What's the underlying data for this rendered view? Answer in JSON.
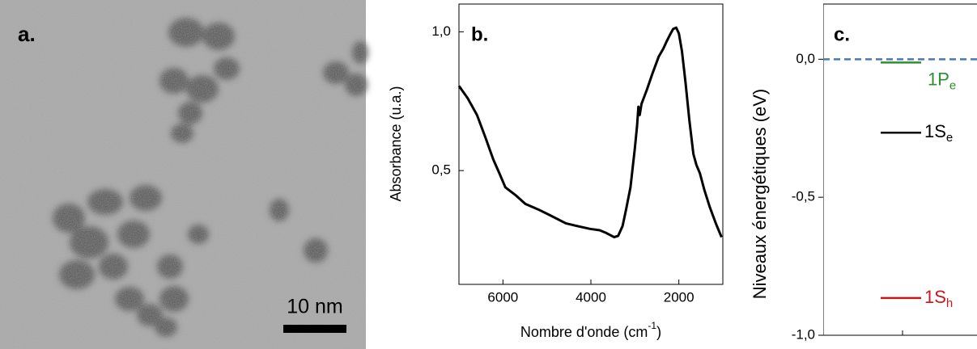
{
  "panel_a": {
    "label": "a.",
    "scale_bar": "10 nm"
  },
  "chart_data": [
    {
      "type": "line",
      "label": "b.",
      "y_label": "Absorbance (u.a.)",
      "x_label": "Nombre d'onde (cm",
      "x_label_sup": "-1",
      "x_label_end": ")",
      "x": [
        7000,
        6800,
        6590,
        6400,
        6220,
        6080,
        5945,
        5700,
        5490,
        5200,
        4940,
        4570,
        4300,
        4020,
        3800,
        3650,
        3470,
        3380,
        3280,
        3200,
        3100,
        3000,
        2950,
        2920,
        2890,
        2850,
        2730,
        2600,
        2460,
        2350,
        2280,
        2200,
        2130,
        2060,
        2000,
        1930,
        1850,
        1760,
        1670,
        1600,
        1520,
        1420,
        1300,
        1160,
        1030
      ],
      "series": [
        {
          "color": "#000000",
          "values": [
            0.805,
            0.76,
            0.7,
            0.62,
            0.54,
            0.49,
            0.44,
            0.41,
            0.38,
            0.36,
            0.34,
            0.31,
            0.3,
            0.29,
            0.285,
            0.275,
            0.26,
            0.265,
            0.3,
            0.36,
            0.44,
            0.58,
            0.66,
            0.73,
            0.7,
            0.74,
            0.79,
            0.85,
            0.91,
            0.94,
            0.965,
            0.99,
            1.01,
            1.015,
            0.994,
            0.93,
            0.82,
            0.68,
            0.56,
            0.52,
            0.49,
            0.43,
            0.37,
            0.31,
            0.26
          ]
        }
      ],
      "xlim": [
        7000,
        1000
      ],
      "xticks": [
        6000,
        4000,
        2000
      ],
      "ylim": [
        0.09,
        1.1
      ],
      "yticks": [
        {
          "value": 1,
          "label": "1,0"
        },
        {
          "value": 0.5,
          "label": "0,5"
        }
      ]
    },
    {
      "type": "levels",
      "label": "c.",
      "y_label": "Niveaux énergétiques (eV)",
      "ylim": [
        -1.0,
        0.2
      ],
      "yticks": [
        {
          "value": 0,
          "label": "0,0"
        },
        {
          "value": -0.5,
          "label": "-0,5"
        },
        {
          "value": -1,
          "label": "-1,0"
        }
      ],
      "reference": {
        "value": 0,
        "color": "#4a78b5"
      },
      "series": [
        {
          "name": "1P",
          "subscript": "e",
          "color": "#2f8f2f",
          "values": [
            -0.012
          ]
        },
        {
          "name": "1S",
          "subscript": "e",
          "color": "#000000",
          "values": [
            -0.266
          ]
        },
        {
          "name": "1S",
          "subscript": "h",
          "color": "#c8181e",
          "values": [
            -0.865
          ]
        }
      ]
    }
  ]
}
